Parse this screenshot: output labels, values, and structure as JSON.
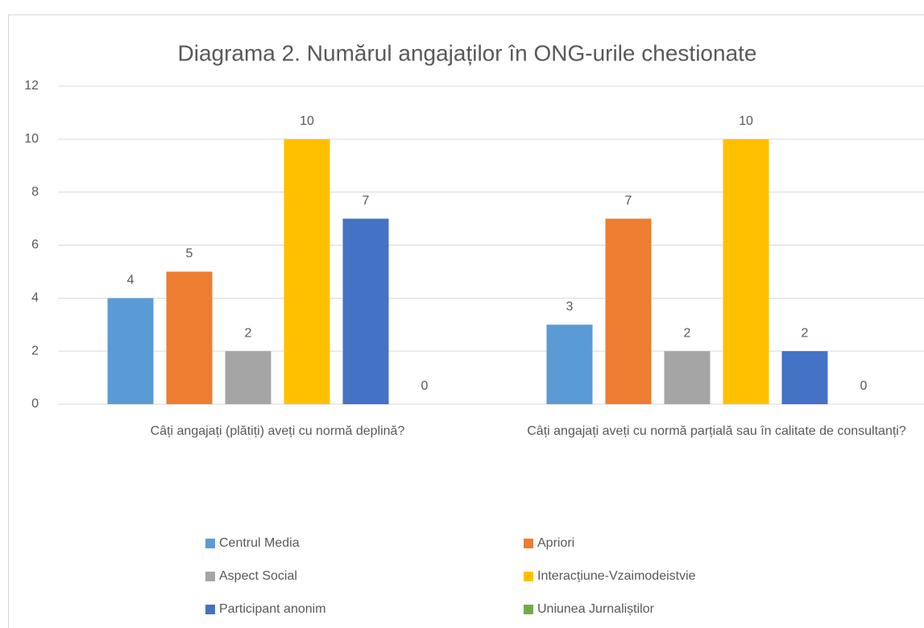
{
  "chart_data": {
    "type": "bar",
    "title": "Diagrama 2. Numărul angajaților în ONG-urile chestionate",
    "categories": [
      "Câți angajați (plătiți) aveți cu normă deplină?",
      "Câți angajați aveți cu normă parțială sau în calitate de consultanți?"
    ],
    "series": [
      {
        "name": "Centrul Media",
        "color": "#5b9bd5",
        "values": [
          4,
          3
        ]
      },
      {
        "name": "Apriori",
        "color": "#ed7d31",
        "values": [
          5,
          7
        ]
      },
      {
        "name": "Aspect Social",
        "color": "#a5a5a5",
        "values": [
          2,
          2
        ]
      },
      {
        "name": "Interacțiune-Vzaimodeistvie",
        "color": "#ffc000",
        "values": [
          10,
          10
        ]
      },
      {
        "name": "Participant anonim",
        "color": "#4472c4",
        "values": [
          7,
          2
        ]
      },
      {
        "name": "Uniunea Jurnaliștilor",
        "color": "#70ad47",
        "values": [
          0,
          0
        ]
      }
    ],
    "ylim": [
      0,
      12
    ],
    "yticks": [
      0,
      2,
      4,
      6,
      8,
      10,
      12
    ],
    "grid": true,
    "legend": "bottom"
  }
}
